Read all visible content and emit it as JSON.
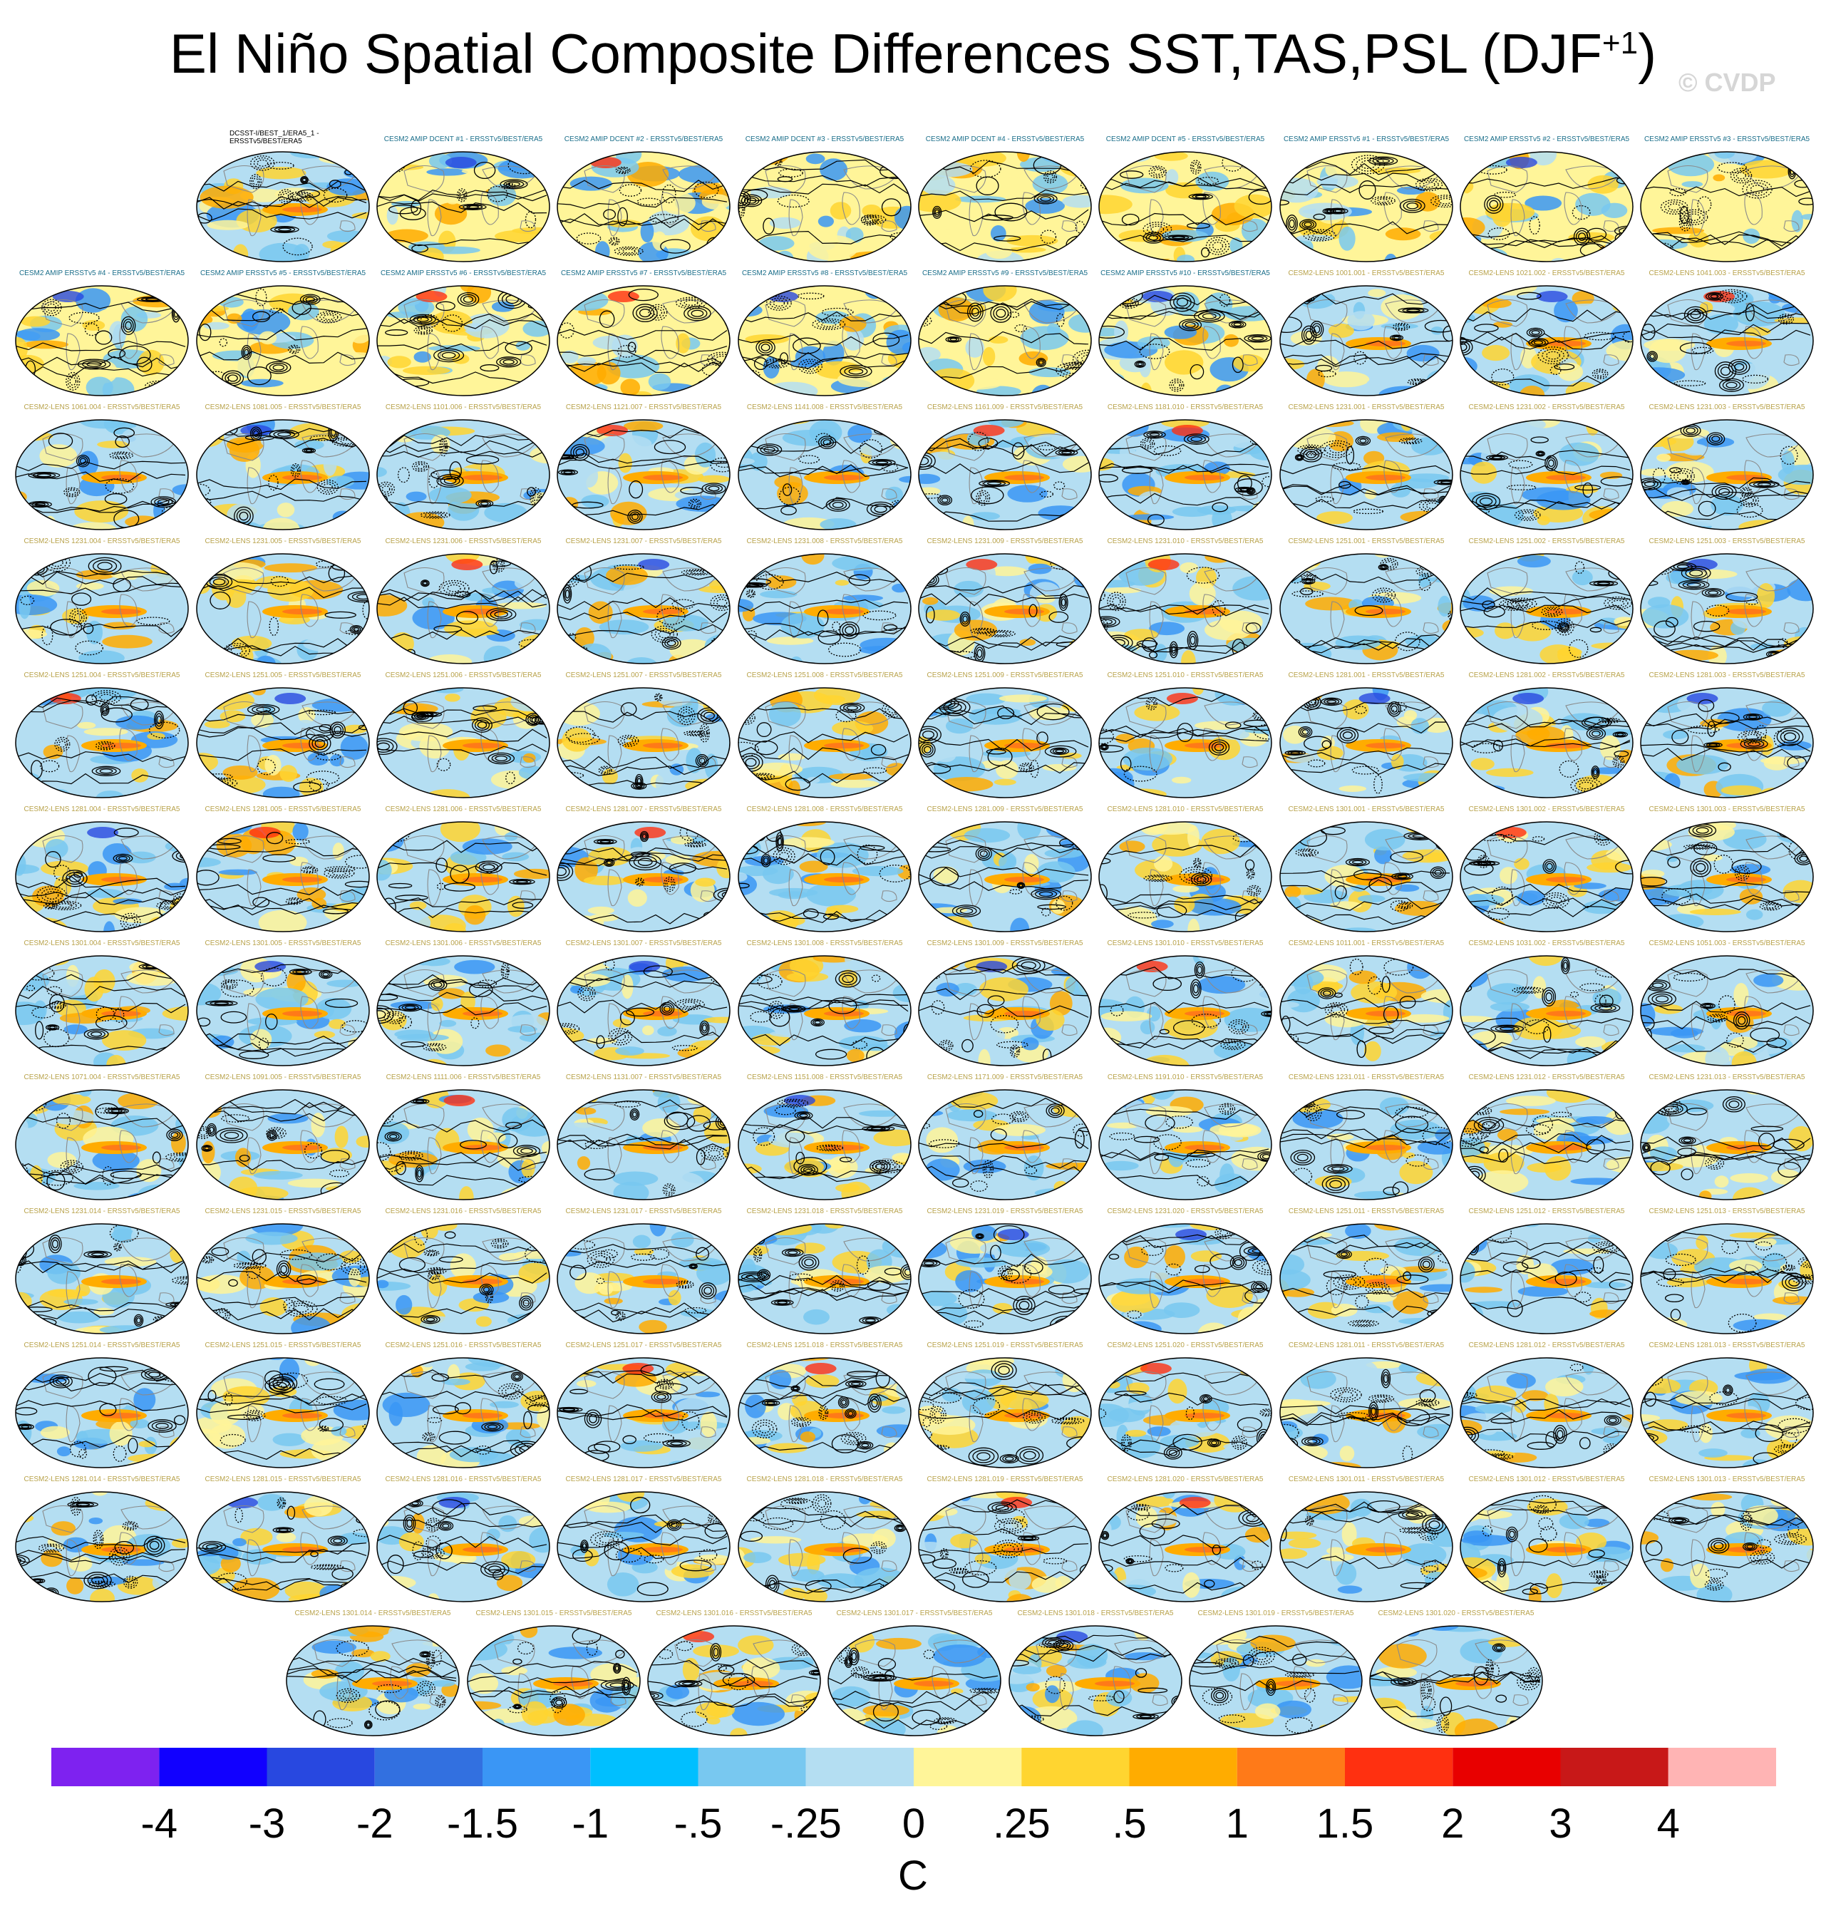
{
  "title": "El Niño Spatial Composite Differences SST,TAS,PSL (DJF",
  "title_superscript": "+1",
  "title_close": ")",
  "watermark": "© CVDP",
  "chart_data": {
    "type": "heatmap",
    "variables": [
      "SST",
      "TAS",
      "PSL"
    ],
    "season": "DJF+1",
    "colorbar": {
      "units": "C",
      "levels": [
        "-4",
        "-3",
        "-2",
        "-1.5",
        "-1",
        "-.5",
        "-.25",
        "0",
        ".25",
        ".5",
        "1",
        "1.5",
        "2",
        "3",
        "4"
      ],
      "colors": [
        "#7e22f0",
        "#1100ff",
        "#2848e0",
        "#3270e0",
        "#3a96f5",
        "#00bfff",
        "#78c8f0",
        "#b4def2",
        "#fff599",
        "#ffd530",
        "#ffac00",
        "#ff7a18",
        "#ff3010",
        "#e80000",
        "#c81818",
        "#ffb4b4"
      ]
    },
    "panel_rows": [
      [
        "DCSST-I/BEST_1/ERA5_1 - ERSSTv5/BEST/ERA5",
        "CESM2 AMIP DCENT #1 - ERSSTv5/BEST/ERA5",
        "CESM2 AMIP DCENT #2 - ERSSTv5/BEST/ERA5",
        "CESM2 AMIP DCENT #3 - ERSSTv5/BEST/ERA5",
        "CESM2 AMIP DCENT #4 - ERSSTv5/BEST/ERA5",
        "CESM2 AMIP DCENT #5 - ERSSTv5/BEST/ERA5",
        "CESM2 AMIP ERSSTv5 #1 - ERSSTv5/BEST/ERA5",
        "CESM2 AMIP ERSSTv5 #2 - ERSSTv5/BEST/ERA5",
        "CESM2 AMIP ERSSTv5 #3 - ERSSTv5/BEST/ERA5"
      ],
      [
        "CESM2 AMIP ERSSTv5 #4 - ERSSTv5/BEST/ERA5",
        "CESM2 AMIP ERSSTv5 #5 - ERSSTv5/BEST/ERA5",
        "CESM2 AMIP ERSSTv5 #6 - ERSSTv5/BEST/ERA5",
        "CESM2 AMIP ERSSTv5 #7 - ERSSTv5/BEST/ERA5",
        "CESM2 AMIP ERSSTv5 #8 - ERSSTv5/BEST/ERA5",
        "CESM2 AMIP ERSSTv5 #9 - ERSSTv5/BEST/ERA5",
        "CESM2 AMIP ERSSTv5 #10 - ERSSTv5/BEST/ERA5",
        "CESM2-LENS 1001.001 - ERSSTv5/BEST/ERA5",
        "CESM2-LENS 1021.002 - ERSSTv5/BEST/ERA5",
        "CESM2-LENS 1041.003 - ERSSTv5/BEST/ERA5"
      ],
      [
        "CESM2-LENS 1061.004 - ERSSTv5/BEST/ERA5",
        "CESM2-LENS 1081.005 - ERSSTv5/BEST/ERA5",
        "CESM2-LENS 1101.006 - ERSSTv5/BEST/ERA5",
        "CESM2-LENS 1121.007 - ERSSTv5/BEST/ERA5",
        "CESM2-LENS 1141.008 - ERSSTv5/BEST/ERA5",
        "CESM2-LENS 1161.009 - ERSSTv5/BEST/ERA5",
        "CESM2-LENS 1181.010 - ERSSTv5/BEST/ERA5",
        "CESM2-LENS 1231.001 - ERSSTv5/BEST/ERA5",
        "CESM2-LENS 1231.002 - ERSSTv5/BEST/ERA5",
        "CESM2-LENS 1231.003 - ERSSTv5/BEST/ERA5"
      ],
      [
        "CESM2-LENS 1231.004 - ERSSTv5/BEST/ERA5",
        "CESM2-LENS 1231.005 - ERSSTv5/BEST/ERA5",
        "CESM2-LENS 1231.006 - ERSSTv5/BEST/ERA5",
        "CESM2-LENS 1231.007 - ERSSTv5/BEST/ERA5",
        "CESM2-LENS 1231.008 - ERSSTv5/BEST/ERA5",
        "CESM2-LENS 1231.009 - ERSSTv5/BEST/ERA5",
        "CESM2-LENS 1231.010 - ERSSTv5/BEST/ERA5",
        "CESM2-LENS 1251.001 - ERSSTv5/BEST/ERA5",
        "CESM2-LENS 1251.002 - ERSSTv5/BEST/ERA5",
        "CESM2-LENS 1251.003 - ERSSTv5/BEST/ERA5"
      ],
      [
        "CESM2-LENS 1251.004 - ERSSTv5/BEST/ERA5",
        "CESM2-LENS 1251.005 - ERSSTv5/BEST/ERA5",
        "CESM2-LENS 1251.006 - ERSSTv5/BEST/ERA5",
        "CESM2-LENS 1251.007 - ERSSTv5/BEST/ERA5",
        "CESM2-LENS 1251.008 - ERSSTv5/BEST/ERA5",
        "CESM2-LENS 1251.009 - ERSSTv5/BEST/ERA5",
        "CESM2-LENS 1251.010 - ERSSTv5/BEST/ERA5",
        "CESM2-LENS 1281.001 - ERSSTv5/BEST/ERA5",
        "CESM2-LENS 1281.002 - ERSSTv5/BEST/ERA5",
        "CESM2-LENS 1281.003 - ERSSTv5/BEST/ERA5"
      ],
      [
        "CESM2-LENS 1281.004 - ERSSTv5/BEST/ERA5",
        "CESM2-LENS 1281.005 - ERSSTv5/BEST/ERA5",
        "CESM2-LENS 1281.006 - ERSSTv5/BEST/ERA5",
        "CESM2-LENS 1281.007 - ERSSTv5/BEST/ERA5",
        "CESM2-LENS 1281.008 - ERSSTv5/BEST/ERA5",
        "CESM2-LENS 1281.009 - ERSSTv5/BEST/ERA5",
        "CESM2-LENS 1281.010 - ERSSTv5/BEST/ERA5",
        "CESM2-LENS 1301.001 - ERSSTv5/BEST/ERA5",
        "CESM2-LENS 1301.002 - ERSSTv5/BEST/ERA5",
        "CESM2-LENS 1301.003 - ERSSTv5/BEST/ERA5"
      ],
      [
        "CESM2-LENS 1301.004 - ERSSTv5/BEST/ERA5",
        "CESM2-LENS 1301.005 - ERSSTv5/BEST/ERA5",
        "CESM2-LENS 1301.006 - ERSSTv5/BEST/ERA5",
        "CESM2-LENS 1301.007 - ERSSTv5/BEST/ERA5",
        "CESM2-LENS 1301.008 - ERSSTv5/BEST/ERA5",
        "CESM2-LENS 1301.009 - ERSSTv5/BEST/ERA5",
        "CESM2-LENS 1301.010 - ERSSTv5/BEST/ERA5",
        "CESM2-LENS 1011.001 - ERSSTv5/BEST/ERA5",
        "CESM2-LENS 1031.002 - ERSSTv5/BEST/ERA5",
        "CESM2-LENS 1051.003 - ERSSTv5/BEST/ERA5"
      ],
      [
        "CESM2-LENS 1071.004 - ERSSTv5/BEST/ERA5",
        "CESM2-LENS 1091.005 - ERSSTv5/BEST/ERA5",
        "CESM2-LENS 1111.006 - ERSSTv5/BEST/ERA5",
        "CESM2-LENS 1131.007 - ERSSTv5/BEST/ERA5",
        "CESM2-LENS 1151.008 - ERSSTv5/BEST/ERA5",
        "CESM2-LENS 1171.009 - ERSSTv5/BEST/ERA5",
        "CESM2-LENS 1191.010 - ERSSTv5/BEST/ERA5",
        "CESM2-LENS 1231.011 - ERSSTv5/BEST/ERA5",
        "CESM2-LENS 1231.012 - ERSSTv5/BEST/ERA5",
        "CESM2-LENS 1231.013 - ERSSTv5/BEST/ERA5"
      ],
      [
        "CESM2-LENS 1231.014 - ERSSTv5/BEST/ERA5",
        "CESM2-LENS 1231.015 - ERSSTv5/BEST/ERA5",
        "CESM2-LENS 1231.016 - ERSSTv5/BEST/ERA5",
        "CESM2-LENS 1231.017 - ERSSTv5/BEST/ERA5",
        "CESM2-LENS 1231.018 - ERSSTv5/BEST/ERA5",
        "CESM2-LENS 1231.019 - ERSSTv5/BEST/ERA5",
        "CESM2-LENS 1231.020 - ERSSTv5/BEST/ERA5",
        "CESM2-LENS 1251.011 - ERSSTv5/BEST/ERA5",
        "CESM2-LENS 1251.012 - ERSSTv5/BEST/ERA5",
        "CESM2-LENS 1251.013 - ERSSTv5/BEST/ERA5"
      ],
      [
        "CESM2-LENS 1251.014 - ERSSTv5/BEST/ERA5",
        "CESM2-LENS 1251.015 - ERSSTv5/BEST/ERA5",
        "CESM2-LENS 1251.016 - ERSSTv5/BEST/ERA5",
        "CESM2-LENS 1251.017 - ERSSTv5/BEST/ERA5",
        "CESM2-LENS 1251.018 - ERSSTv5/BEST/ERA5",
        "CESM2-LENS 1251.019 - ERSSTv5/BEST/ERA5",
        "CESM2-LENS 1251.020 - ERSSTv5/BEST/ERA5",
        "CESM2-LENS 1281.011 - ERSSTv5/BEST/ERA5",
        "CESM2-LENS 1281.012 - ERSSTv5/BEST/ERA5",
        "CESM2-LENS 1281.013 - ERSSTv5/BEST/ERA5"
      ],
      [
        "CESM2-LENS 1281.014 - ERSSTv5/BEST/ERA5",
        "CESM2-LENS 1281.015 - ERSSTv5/BEST/ERA5",
        "CESM2-LENS 1281.016 - ERSSTv5/BEST/ERA5",
        "CESM2-LENS 1281.017 - ERSSTv5/BEST/ERA5",
        "CESM2-LENS 1281.018 - ERSSTv5/BEST/ERA5",
        "CESM2-LENS 1281.019 - ERSSTv5/BEST/ERA5",
        "CESM2-LENS 1281.020 - ERSSTv5/BEST/ERA5",
        "CESM2-LENS 1301.011 - ERSSTv5/BEST/ERA5",
        "CESM2-LENS 1301.012 - ERSSTv5/BEST/ERA5",
        "CESM2-LENS 1301.013 - ERSSTv5/BEST/ERA5"
      ],
      [
        "CESM2-LENS 1301.014 - ERSSTv5/BEST/ERA5",
        "CESM2-LENS 1301.015 - ERSSTv5/BEST/ERA5",
        "CESM2-LENS 1301.016 - ERSSTv5/BEST/ERA5",
        "CESM2-LENS 1301.017 - ERSSTv5/BEST/ERA5",
        "CESM2-LENS 1301.018 - ERSSTv5/BEST/ERA5",
        "CESM2-LENS 1301.019 - ERSSTv5/BEST/ERA5",
        "CESM2-LENS 1301.020 - ERSSTv5/BEST/ERA5"
      ]
    ],
    "panel_title_colors": {
      "observed": "#000000",
      "amip": "#1a6e8a",
      "lens": "#b8a24a"
    }
  }
}
